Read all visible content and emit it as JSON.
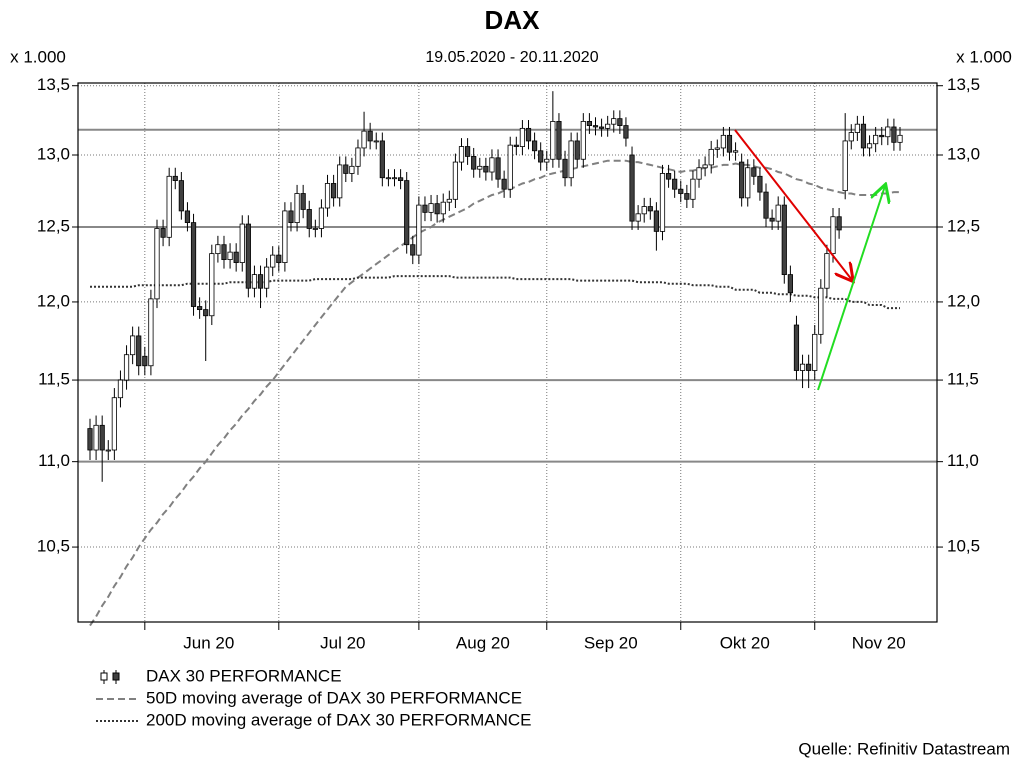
{
  "chart_data": {
    "type": "candlestick",
    "title": "DAX",
    "subtitle": "19.05.2020 - 20.11.2020",
    "y_unit_label": "x 1.000",
    "source": "Quelle: Refinitiv Datastream",
    "log_y": true,
    "grid": true,
    "ylim": [
      10.08,
      13.52
    ],
    "yticks": [
      {
        "value": 10.5,
        "label": "10,5"
      },
      {
        "value": 11.0,
        "label": "11,0"
      },
      {
        "value": 11.5,
        "label": "11,5"
      },
      {
        "value": 12.0,
        "label": "12,0"
      },
      {
        "value": 12.5,
        "label": "12,5"
      },
      {
        "value": 13.0,
        "label": "13,0"
      },
      {
        "value": 13.5,
        "label": "13,5"
      }
    ],
    "reference_lines": [
      13.18,
      12.5,
      11.5,
      11.0
    ],
    "categories": [
      null,
      null,
      null,
      null,
      null,
      null,
      null,
      null,
      null,
      "Jun 20",
      null,
      null,
      null,
      null,
      null,
      null,
      null,
      null,
      null,
      null,
      null,
      null,
      null,
      null,
      null,
      null,
      null,
      null,
      null,
      null,
      null,
      "Jul 20",
      null,
      null,
      null,
      null,
      null,
      null,
      null,
      null,
      null,
      null,
      null,
      null,
      null,
      null,
      null,
      null,
      null,
      null,
      null,
      null,
      null,
      null,
      "Aug 20",
      null,
      null,
      null,
      null,
      null,
      null,
      null,
      null,
      null,
      null,
      null,
      null,
      null,
      null,
      null,
      null,
      null,
      null,
      null,
      null,
      "Sep 20",
      null,
      null,
      null,
      null,
      null,
      null,
      null,
      null,
      null,
      null,
      null,
      null,
      null,
      null,
      null,
      null,
      null,
      null,
      null,
      null,
      null,
      "Okt 20",
      null,
      null,
      null,
      null,
      null,
      null,
      null,
      null,
      null,
      null,
      null,
      null,
      null,
      null,
      null,
      null,
      null,
      null,
      null,
      null,
      null,
      "Nov 20",
      null,
      null,
      null,
      null,
      null,
      null,
      null,
      null,
      null,
      null,
      null,
      null,
      null,
      null
    ],
    "ohlc": {
      "name": "DAX 30 PERFORMANCE",
      "up_color": "#ffffff",
      "down_color": "#404040",
      "open": [
        11.2,
        11.07,
        11.22,
        11.07,
        11.07,
        11.39,
        11.5,
        11.66,
        11.78,
        11.65,
        11.59,
        12.02,
        12.49,
        12.43,
        12.85,
        12.82,
        12.61,
        12.53,
        11.97,
        11.95,
        11.91,
        12.32,
        12.38,
        12.28,
        12.33,
        12.26,
        12.52,
        12.09,
        12.18,
        12.09,
        12.23,
        12.31,
        12.26,
        12.61,
        12.53,
        12.73,
        12.62,
        12.49,
        12.49,
        12.63,
        12.8,
        12.7,
        12.93,
        12.87,
        12.92,
        13.05,
        13.17,
        13.1,
        13.1,
        12.84,
        12.84,
        12.84,
        12.82,
        12.38,
        12.31,
        12.65,
        12.6,
        12.66,
        12.59,
        12.67,
        12.69,
        12.95,
        13.06,
        12.99,
        12.9,
        12.92,
        12.88,
        12.98,
        12.83,
        12.76,
        13.07,
        13.06,
        13.19,
        13.1,
        13.03,
        12.95,
        12.97,
        13.24,
        12.97,
        12.84,
        13.1,
        12.97,
        13.24,
        13.21,
        13.2,
        13.19,
        13.22,
        13.26,
        13.21,
        13.0,
        12.54,
        12.59,
        12.64,
        12.61,
        12.47,
        12.87,
        12.83,
        12.76,
        12.73,
        12.69,
        12.83,
        12.91,
        12.93,
        13.04,
        13.05,
        13.14,
        13.02,
        12.95,
        12.7,
        12.91,
        12.85,
        12.74,
        12.56,
        12.54,
        12.65,
        12.18,
        11.85,
        11.56,
        11.6,
        11.56,
        11.79,
        12.09,
        12.32,
        12.57,
        12.75,
        13.1,
        13.16,
        13.22,
        13.05,
        13.08,
        13.14,
        13.13,
        13.2,
        13.09
      ],
      "high": [
        11.26,
        11.28,
        11.28,
        11.13,
        11.45,
        11.56,
        11.72,
        11.84,
        11.84,
        11.71,
        12.08,
        12.55,
        12.55,
        12.91,
        12.91,
        12.88,
        12.67,
        12.59,
        12.03,
        12.01,
        12.38,
        12.44,
        12.44,
        12.39,
        12.39,
        12.58,
        12.58,
        12.24,
        12.24,
        12.29,
        12.37,
        12.37,
        12.67,
        12.67,
        12.79,
        12.79,
        12.68,
        12.55,
        12.69,
        12.86,
        12.86,
        12.99,
        12.99,
        12.98,
        13.11,
        13.31,
        13.23,
        13.16,
        13.16,
        12.9,
        12.9,
        12.9,
        12.88,
        12.44,
        12.71,
        12.71,
        12.72,
        12.72,
        12.73,
        12.75,
        13.01,
        13.12,
        13.12,
        13.05,
        12.98,
        12.98,
        13.04,
        13.04,
        12.89,
        13.13,
        13.13,
        13.25,
        13.25,
        13.16,
        13.09,
        13.03,
        13.46,
        13.3,
        13.03,
        13.16,
        13.16,
        13.3,
        13.3,
        13.27,
        13.26,
        13.28,
        13.32,
        13.32,
        13.27,
        13.06,
        12.65,
        12.7,
        12.7,
        12.67,
        12.93,
        12.93,
        12.89,
        12.82,
        12.79,
        12.89,
        12.97,
        12.99,
        13.1,
        13.11,
        13.2,
        13.2,
        13.09,
        13.01,
        12.97,
        12.97,
        12.91,
        12.8,
        12.62,
        12.71,
        12.71,
        12.24,
        11.91,
        11.66,
        11.66,
        11.85,
        12.15,
        12.38,
        12.63,
        12.63,
        13.3,
        13.22,
        13.28,
        13.28,
        13.14,
        13.2,
        13.2,
        13.26,
        13.26,
        13.2
      ],
      "low": [
        11.01,
        11.01,
        10.88,
        11.01,
        11.01,
        11.33,
        11.44,
        11.6,
        11.53,
        11.53,
        11.53,
        11.96,
        12.37,
        12.37,
        12.76,
        12.55,
        12.47,
        11.91,
        11.89,
        11.62,
        11.85,
        12.26,
        12.22,
        12.22,
        12.2,
        12.2,
        12.03,
        12.03,
        11.96,
        12.03,
        12.17,
        12.2,
        12.2,
        12.47,
        12.47,
        12.56,
        12.43,
        12.43,
        12.43,
        12.57,
        12.64,
        12.64,
        12.81,
        12.81,
        12.86,
        12.99,
        13.04,
        13.04,
        12.78,
        12.78,
        12.78,
        12.76,
        12.32,
        12.25,
        12.25,
        12.54,
        12.54,
        12.53,
        12.53,
        12.61,
        12.63,
        12.89,
        12.93,
        12.84,
        12.84,
        12.82,
        12.82,
        12.77,
        12.7,
        12.7,
        13.0,
        13.0,
        13.04,
        12.97,
        12.89,
        12.89,
        12.91,
        12.91,
        12.78,
        12.78,
        12.91,
        12.91,
        13.15,
        13.14,
        13.13,
        13.13,
        13.16,
        13.15,
        13.06,
        12.48,
        12.48,
        12.53,
        12.55,
        12.34,
        12.41,
        12.77,
        12.7,
        12.67,
        12.63,
        12.63,
        12.77,
        12.85,
        12.87,
        12.98,
        12.99,
        12.96,
        12.96,
        12.64,
        12.64,
        12.79,
        12.68,
        12.5,
        12.48,
        12.48,
        12.12,
        12.0,
        11.5,
        11.45,
        11.45,
        11.5,
        11.73,
        12.03,
        12.26,
        12.42,
        12.69,
        13.04,
        13.1,
        12.99,
        12.99,
        13.02,
        13.07,
        13.07,
        13.03,
        13.03
      ],
      "close": [
        11.07,
        11.22,
        11.07,
        11.07,
        11.39,
        11.5,
        11.66,
        11.78,
        11.59,
        11.59,
        12.02,
        12.49,
        12.43,
        12.85,
        12.82,
        12.61,
        12.53,
        11.97,
        11.95,
        11.91,
        12.32,
        12.38,
        12.28,
        12.33,
        12.26,
        12.52,
        12.09,
        12.18,
        12.09,
        12.23,
        12.31,
        12.26,
        12.61,
        12.53,
        12.73,
        12.62,
        12.49,
        12.49,
        12.63,
        12.8,
        12.7,
        12.93,
        12.87,
        12.92,
        13.05,
        13.17,
        13.1,
        13.1,
        12.84,
        12.84,
        12.84,
        12.82,
        12.38,
        12.31,
        12.65,
        12.6,
        12.66,
        12.59,
        12.67,
        12.69,
        12.95,
        13.06,
        12.99,
        12.9,
        12.92,
        12.88,
        12.98,
        12.83,
        12.76,
        13.07,
        13.06,
        13.19,
        13.1,
        13.03,
        12.95,
        12.97,
        13.24,
        12.97,
        12.84,
        13.1,
        12.97,
        13.24,
        13.21,
        13.2,
        13.19,
        13.22,
        13.26,
        13.21,
        13.12,
        12.54,
        12.59,
        12.64,
        12.61,
        12.47,
        12.87,
        12.83,
        12.76,
        12.73,
        12.69,
        12.83,
        12.91,
        12.93,
        13.04,
        13.05,
        13.14,
        13.02,
        13.03,
        12.7,
        12.91,
        12.85,
        12.74,
        12.56,
        12.54,
        12.65,
        12.18,
        12.06,
        11.56,
        11.6,
        11.56,
        11.79,
        12.09,
        12.32,
        12.57,
        12.48,
        13.1,
        13.16,
        13.22,
        13.05,
        13.08,
        13.14,
        13.13,
        13.2,
        13.09,
        13.14
      ]
    },
    "series": [
      {
        "name": "50D moving average of DAX 30 PERFORMANCE",
        "color": "#808080",
        "style": "dashed",
        "values": [
          10.06,
          10.11,
          10.17,
          10.22,
          10.28,
          10.33,
          10.39,
          10.44,
          10.5,
          10.55,
          10.6,
          10.64,
          10.69,
          10.73,
          10.78,
          10.82,
          10.87,
          10.91,
          10.96,
          11.0,
          11.05,
          11.1,
          11.14,
          11.19,
          11.23,
          11.28,
          11.32,
          11.37,
          11.41,
          11.46,
          11.5,
          11.55,
          11.6,
          11.65,
          11.7,
          11.75,
          11.8,
          11.85,
          11.9,
          11.95,
          12.0,
          12.05,
          12.1,
          12.13,
          12.16,
          12.19,
          12.22,
          12.25,
          12.28,
          12.31,
          12.34,
          12.37,
          12.4,
          12.43,
          12.46,
          12.48,
          12.5,
          12.53,
          12.55,
          12.57,
          12.59,
          12.61,
          12.63,
          12.66,
          12.68,
          12.7,
          12.72,
          12.73,
          12.75,
          12.76,
          12.78,
          12.8,
          12.81,
          12.83,
          12.84,
          12.86,
          12.87,
          12.88,
          12.89,
          12.9,
          12.91,
          12.92,
          12.93,
          12.94,
          12.95,
          12.96,
          12.96,
          12.96,
          12.96,
          12.95,
          12.95,
          12.94,
          12.93,
          12.92,
          12.91,
          12.9,
          12.89,
          12.88,
          12.89,
          12.89,
          12.9,
          12.91,
          12.91,
          12.92,
          12.93,
          12.93,
          12.94,
          12.93,
          12.93,
          12.92,
          12.91,
          12.91,
          12.9,
          12.88,
          12.87,
          12.85,
          12.83,
          12.82,
          12.8,
          12.79,
          12.77,
          12.76,
          12.75,
          12.74,
          12.73,
          12.73,
          12.72,
          12.72,
          12.72,
          12.72,
          12.73,
          12.73,
          12.74,
          12.74
        ]
      },
      {
        "name": "200D moving average of DAX 30 PERFORMANCE",
        "color": "#333333",
        "style": "dotted",
        "values": [
          12.1,
          12.1,
          12.1,
          12.1,
          12.1,
          12.1,
          12.1,
          12.1,
          12.11,
          12.11,
          12.11,
          12.11,
          12.11,
          12.11,
          12.11,
          12.11,
          12.12,
          12.12,
          12.12,
          12.12,
          12.12,
          12.12,
          12.12,
          12.13,
          12.13,
          12.13,
          12.13,
          12.13,
          12.13,
          12.13,
          12.14,
          12.14,
          12.14,
          12.14,
          12.14,
          12.14,
          12.14,
          12.15,
          12.15,
          12.15,
          12.15,
          12.15,
          12.15,
          12.15,
          12.16,
          12.16,
          12.16,
          12.16,
          12.16,
          12.16,
          12.17,
          12.17,
          12.17,
          12.17,
          12.17,
          12.17,
          12.17,
          12.17,
          12.17,
          12.17,
          12.16,
          12.16,
          12.16,
          12.16,
          12.16,
          12.16,
          12.16,
          12.16,
          12.16,
          12.16,
          12.15,
          12.15,
          12.15,
          12.15,
          12.15,
          12.15,
          12.15,
          12.15,
          12.15,
          12.15,
          12.14,
          12.14,
          12.14,
          12.14,
          12.14,
          12.14,
          12.14,
          12.14,
          12.14,
          12.14,
          12.13,
          12.13,
          12.13,
          12.13,
          12.13,
          12.12,
          12.12,
          12.12,
          12.12,
          12.11,
          12.11,
          12.11,
          12.11,
          12.1,
          12.1,
          12.1,
          12.08,
          12.08,
          12.08,
          12.08,
          12.06,
          12.06,
          12.06,
          12.05,
          12.05,
          12.05,
          12.04,
          12.04,
          12.04,
          12.03,
          12.03,
          12.03,
          12.02,
          12.02,
          12.02,
          12.0,
          12.0,
          12.0,
          11.98,
          11.98,
          11.98,
          11.96,
          11.96,
          11.96
        ]
      }
    ]
  }
}
